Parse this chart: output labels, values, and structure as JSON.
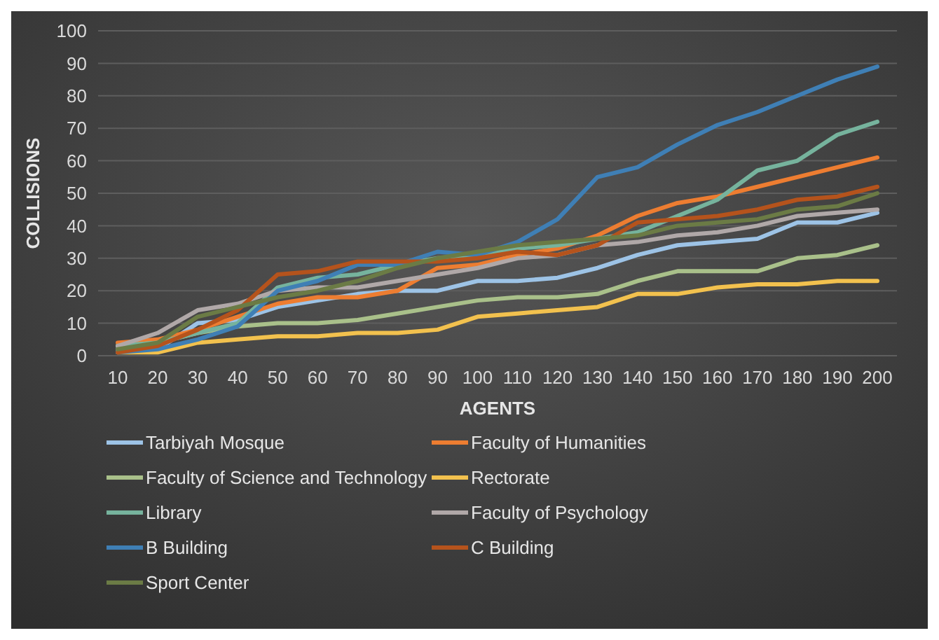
{
  "chart_data": {
    "type": "line",
    "xlabel": "AGENTS",
    "ylabel": "COLLISIONS",
    "categories": [
      "10",
      "20",
      "30",
      "40",
      "50",
      "60",
      "70",
      "80",
      "90",
      "100",
      "110",
      "120",
      "130",
      "140",
      "150",
      "160",
      "170",
      "180",
      "190",
      "200"
    ],
    "ylim": [
      0,
      100
    ],
    "yticks": [
      0,
      10,
      20,
      30,
      40,
      50,
      60,
      70,
      80,
      90,
      100
    ],
    "grid": "y",
    "legend": "bottom",
    "marker": "none",
    "line_style": "solid",
    "series": [
      {
        "name": "Tarbiyah Mosque",
        "color": "#9dc3e6",
        "values": [
          2,
          2,
          10,
          11,
          15,
          17,
          19,
          20,
          20,
          23,
          23,
          24,
          27,
          31,
          34,
          35,
          36,
          41,
          41,
          44
        ]
      },
      {
        "name": "Faculty of Humanities",
        "color": "#ed7d31",
        "values": [
          4,
          5,
          8,
          12,
          16,
          18,
          18,
          20,
          27,
          28,
          31,
          33,
          37,
          43,
          47,
          49,
          52,
          55,
          58,
          61
        ]
      },
      {
        "name": "Faculty of Science and Technology",
        "color": "#a9c08a",
        "values": [
          3,
          4,
          7,
          9,
          10,
          10,
          11,
          13,
          15,
          17,
          18,
          18,
          19,
          23,
          26,
          26,
          26,
          30,
          31,
          34
        ]
      },
      {
        "name": "Rectorate",
        "color": "#f2c14e",
        "values": [
          1,
          1,
          4,
          5,
          6,
          6,
          7,
          7,
          8,
          12,
          13,
          14,
          15,
          19,
          19,
          21,
          22,
          22,
          23,
          23
        ]
      },
      {
        "name": "Library",
        "color": "#76b39d",
        "values": [
          3,
          4,
          7,
          10,
          21,
          24,
          25,
          28,
          30,
          31,
          33,
          34,
          36,
          38,
          43,
          48,
          57,
          60,
          68,
          72
        ]
      },
      {
        "name": "Faculty of Psychology",
        "color": "#b0a8a8",
        "values": [
          3,
          7,
          14,
          16,
          20,
          21,
          21,
          23,
          25,
          27,
          30,
          31,
          34,
          35,
          37,
          38,
          40,
          43,
          44,
          45
        ]
      },
      {
        "name": "B Building",
        "color": "#3f7fb5",
        "values": [
          1,
          2,
          5,
          9,
          20,
          23,
          28,
          28,
          32,
          31,
          35,
          42,
          55,
          58,
          65,
          71,
          75,
          80,
          85,
          89
        ]
      },
      {
        "name": "C Building",
        "color": "#b5531c",
        "values": [
          1,
          3,
          8,
          14,
          25,
          26,
          29,
          29,
          29,
          30,
          32,
          31,
          34,
          41,
          42,
          43,
          45,
          48,
          49,
          52
        ]
      },
      {
        "name": "Sport Center",
        "color": "#6b7b45",
        "values": [
          2,
          4,
          12,
          15,
          18,
          20,
          23,
          27,
          30,
          32,
          34,
          35,
          36,
          37,
          40,
          41,
          42,
          45,
          46,
          50
        ]
      }
    ]
  }
}
